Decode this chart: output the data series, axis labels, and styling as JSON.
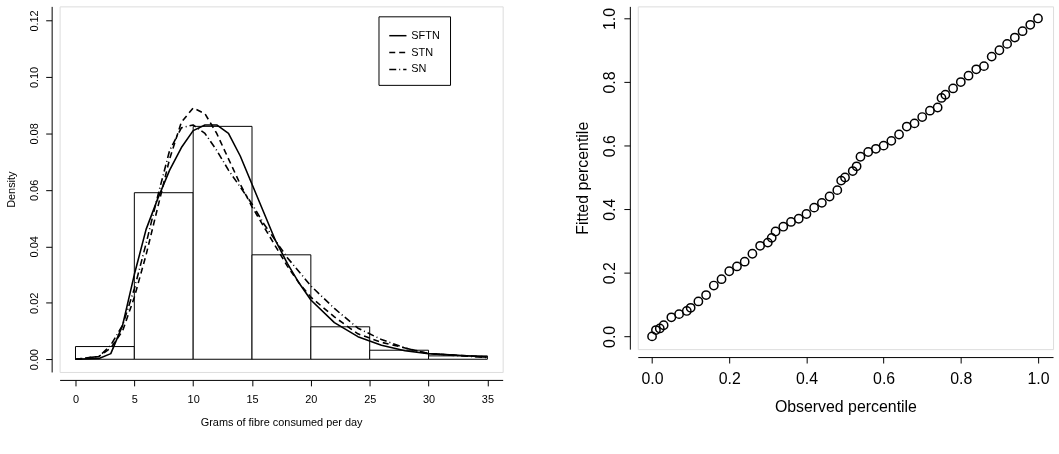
{
  "chart_data": [
    {
      "type": "histogram",
      "xlabel": "Grams of fibre consumed per day",
      "ylabel": "Density",
      "bins": [
        0,
        5,
        10,
        15,
        20,
        25,
        30,
        35
      ],
      "values": [
        0.0045,
        0.059,
        0.0825,
        0.037,
        0.0115,
        0.0032,
        0.0012
      ],
      "color": "#ffffff",
      "xlim": [
        -1.35,
        36.3
      ],
      "xticks": [
        0,
        5,
        10,
        15,
        20,
        25,
        30,
        35
      ],
      "ylim": [
        -0.0045,
        0.125
      ],
      "yticks": [
        {
          "value": 0,
          "label": "0.00"
        },
        {
          "value": 0.02,
          "label": "0.02"
        },
        {
          "value": 0.04,
          "label": "0.04"
        },
        {
          "value": 0.06,
          "label": "0.06"
        },
        {
          "value": 0.08,
          "label": "0.08"
        },
        {
          "value": 0.1,
          "label": "0.10"
        },
        {
          "value": 0.12,
          "label": "0.12"
        }
      ],
      "grid": false,
      "legend": "top right",
      "series": [
        {
          "name": "SFTN",
          "type": "line",
          "color": "#000000",
          "line_style": "solid",
          "x": [
            0,
            2,
            3,
            4,
            5,
            6,
            7,
            8,
            9,
            10,
            11,
            12,
            13,
            14,
            15,
            16,
            17,
            18,
            19,
            20,
            22,
            24,
            26,
            28,
            30,
            35
          ],
          "values": [
            0,
            0.0003,
            0.002,
            0.012,
            0.03,
            0.046,
            0.057,
            0.067,
            0.075,
            0.081,
            0.083,
            0.083,
            0.08,
            0.072,
            0.062,
            0.052,
            0.042,
            0.034,
            0.027,
            0.021,
            0.013,
            0.008,
            0.005,
            0.003,
            0.002,
            0.0008
          ]
        },
        {
          "name": "STN",
          "type": "line",
          "color": "#000000",
          "line_style": "dashed",
          "x": [
            0,
            2,
            3,
            4,
            5,
            6,
            7,
            8,
            9,
            10,
            11,
            12,
            13,
            14,
            15,
            16,
            17,
            18,
            19,
            20,
            22,
            24,
            26,
            28,
            30,
            35
          ],
          "values": [
            0,
            0.001,
            0.004,
            0.01,
            0.022,
            0.037,
            0.054,
            0.071,
            0.084,
            0.089,
            0.087,
            0.08,
            0.071,
            0.062,
            0.054,
            0.047,
            0.04,
            0.033,
            0.027,
            0.022,
            0.015,
            0.009,
            0.006,
            0.004,
            0.002,
            0.0008
          ]
        },
        {
          "name": "SN",
          "type": "line",
          "color": "#000000",
          "line_style": "dashdot",
          "x": [
            0,
            2,
            3,
            4,
            5,
            6,
            7,
            8,
            9,
            10,
            11,
            12,
            13,
            14,
            15,
            16,
            17,
            18,
            19,
            20,
            22,
            24,
            26,
            28,
            30,
            35
          ],
          "values": [
            0,
            0.001,
            0.005,
            0.012,
            0.025,
            0.041,
            0.058,
            0.074,
            0.082,
            0.083,
            0.08,
            0.074,
            0.067,
            0.061,
            0.055,
            0.048,
            0.042,
            0.036,
            0.031,
            0.026,
            0.018,
            0.011,
            0.007,
            0.004,
            0.002,
            0.0006
          ]
        }
      ]
    },
    {
      "type": "scatter",
      "xlabel": "Observed percentile",
      "ylabel": "Fitted percentile",
      "marker": "circle",
      "color": "#000000",
      "grid": false,
      "xlim": [
        -0.037,
        1.039
      ],
      "xticks": [
        {
          "value": 0,
          "label": "0.0"
        },
        0.2,
        0.4,
        0.6,
        0.8,
        {
          "value": 1,
          "label": "1.0"
        }
      ],
      "ylim": [
        -0.04,
        1.038
      ],
      "yticks": [
        {
          "value": 0,
          "label": "0.0"
        },
        0.2,
        0.4,
        0.6,
        0.8,
        {
          "value": 1,
          "label": "1.0"
        }
      ],
      "x": [
        0,
        0.01,
        0.02,
        0.03,
        0.05,
        0.07,
        0.09,
        0.1,
        0.12,
        0.14,
        0.16,
        0.18,
        0.2,
        0.22,
        0.24,
        0.26,
        0.28,
        0.3,
        0.31,
        0.32,
        0.34,
        0.36,
        0.38,
        0.4,
        0.42,
        0.44,
        0.46,
        0.48,
        0.49,
        0.5,
        0.52,
        0.53,
        0.54,
        0.56,
        0.58,
        0.6,
        0.62,
        0.64,
        0.66,
        0.68,
        0.7,
        0.72,
        0.74,
        0.75,
        0.76,
        0.78,
        0.8,
        0.82,
        0.84,
        0.86,
        0.88,
        0.9,
        0.92,
        0.94,
        0.96,
        0.98,
        1
      ],
      "values": [
        0,
        0.02,
        0.025,
        0.035,
        0.06,
        0.07,
        0.08,
        0.09,
        0.11,
        0.13,
        0.16,
        0.18,
        0.205,
        0.22,
        0.235,
        0.26,
        0.285,
        0.295,
        0.31,
        0.33,
        0.345,
        0.36,
        0.37,
        0.385,
        0.405,
        0.42,
        0.44,
        0.46,
        0.49,
        0.5,
        0.52,
        0.535,
        0.565,
        0.58,
        0.59,
        0.6,
        0.615,
        0.635,
        0.66,
        0.67,
        0.69,
        0.71,
        0.72,
        0.75,
        0.76,
        0.78,
        0.8,
        0.82,
        0.84,
        0.85,
        0.88,
        0.9,
        0.92,
        0.94,
        0.96,
        0.98,
        1
      ]
    }
  ]
}
